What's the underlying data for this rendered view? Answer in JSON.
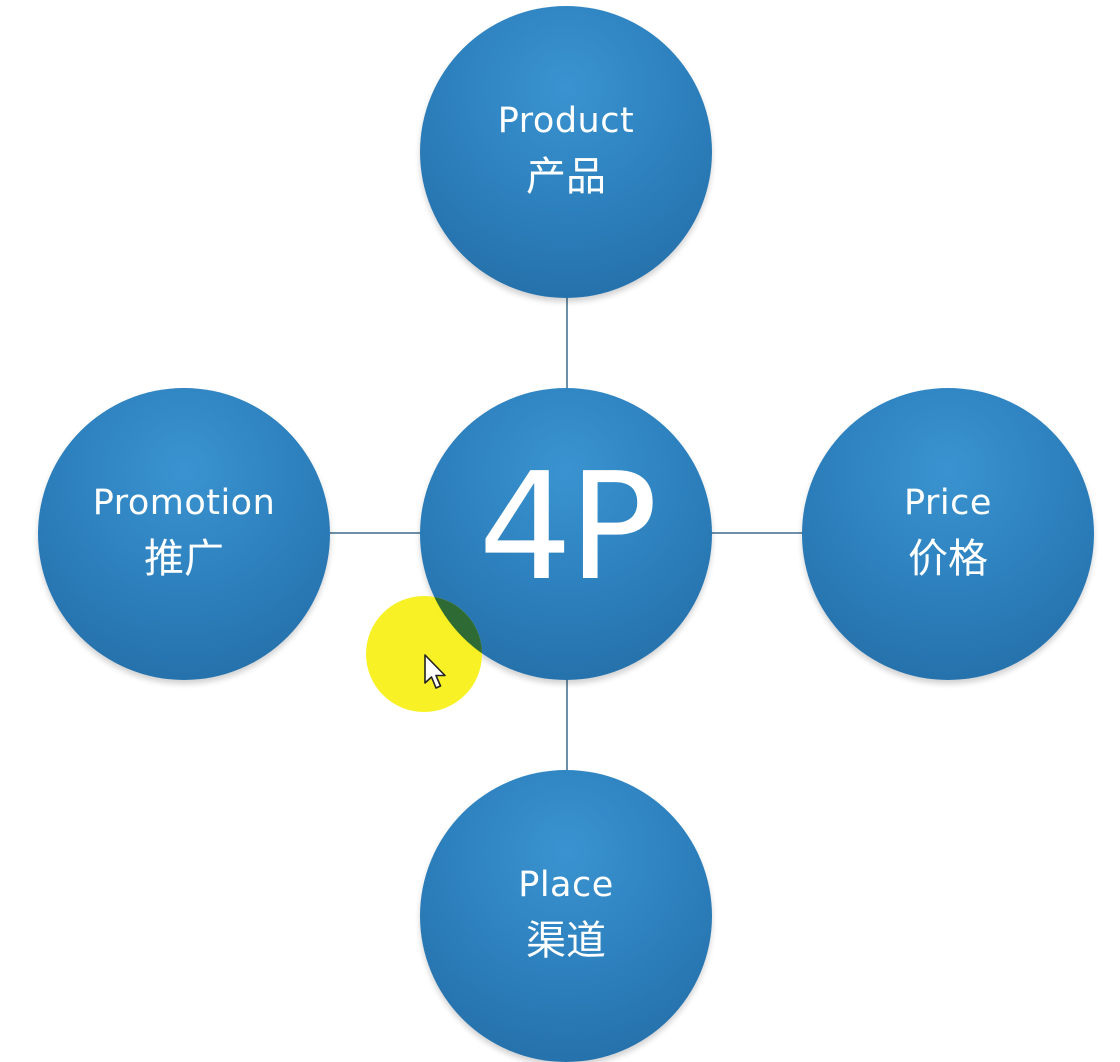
{
  "diagram": {
    "center": {
      "label": "4P"
    },
    "nodes": [
      {
        "id": "product",
        "en": "Product",
        "zh": "产品"
      },
      {
        "id": "promotion",
        "en": "Promotion",
        "zh": "推广"
      },
      {
        "id": "price",
        "en": "Price",
        "zh": "价格"
      },
      {
        "id": "place",
        "en": "Place",
        "zh": "渠道"
      }
    ]
  },
  "colors": {
    "node_fill": "#2d81be",
    "connector": "#6f8fa8",
    "text": "#ffffff",
    "cursor_highlight": "#f6f014"
  },
  "icons": {
    "cursor": "mouse-pointer-icon"
  }
}
